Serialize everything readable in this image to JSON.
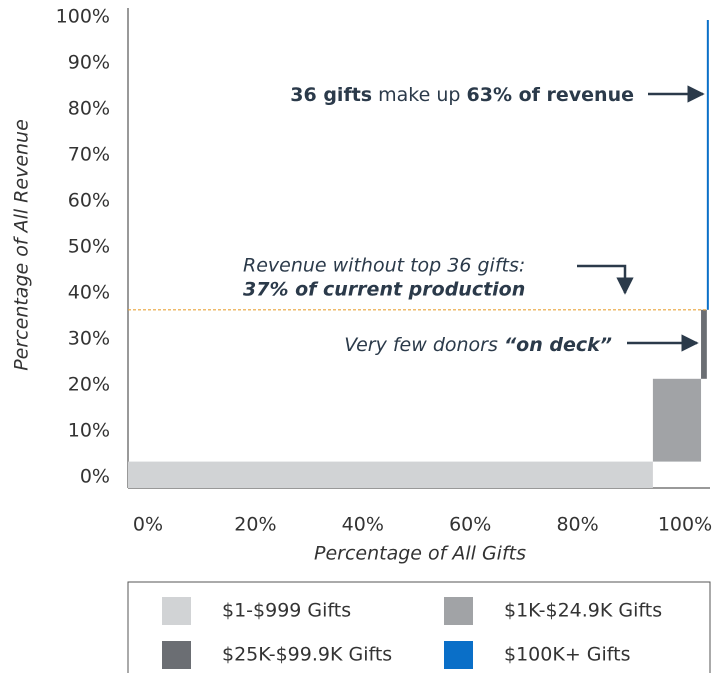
{
  "chart_data": {
    "type": "mekko-step",
    "xlabel": "Percentage of All Gifts",
    "ylabel": "Percentage of All Revenue",
    "xlim": [
      0,
      100
    ],
    "xticks": [
      {
        "value": 0,
        "label": "0%"
      },
      {
        "value": 20,
        "label": "20%"
      },
      {
        "value": 40,
        "label": "40%"
      },
      {
        "value": 60,
        "label": "60%"
      },
      {
        "value": 80,
        "label": "80%"
      },
      {
        "value": 100,
        "label": "100%"
      }
    ],
    "ylim": [
      0,
      100
    ],
    "yticks": [
      {
        "value": 0,
        "label": "0%"
      },
      {
        "value": 10,
        "label": "10%"
      },
      {
        "value": 20,
        "label": "20%"
      },
      {
        "value": 30,
        "label": "30%"
      },
      {
        "value": 40,
        "label": "40%"
      },
      {
        "value": 50,
        "label": "50%"
      },
      {
        "value": 60,
        "label": "60%"
      },
      {
        "value": 70,
        "label": "70%"
      },
      {
        "value": 80,
        "label": "80%"
      },
      {
        "value": 90,
        "label": "90%"
      },
      {
        "value": 100,
        "label": "100%"
      }
    ],
    "series": [
      {
        "name": "$1-$999 Gifts",
        "color": "#d1d3d5",
        "gifts": 90.5,
        "revenue": 4
      },
      {
        "name": "$1K-$24.9K Gifts",
        "color": "#a1a3a6",
        "gifts": 8.3,
        "revenue": 18
      },
      {
        "name": "$25K-$99.9K Gifts",
        "color": "#6b6e73",
        "gifts": 1,
        "revenue": 15
      },
      {
        "name": "$100K+ Gifts",
        "color": "#0a6fc8",
        "gifts": 0.2,
        "revenue": 63
      }
    ],
    "threshold": 37,
    "threshold_color": "#e8a33a",
    "annotations": [
      {
        "parts": [
          {
            "text": "36 gifts",
            "style": "bold"
          },
          {
            "text": " make up ",
            "style": "normal"
          },
          {
            "text": "63% of revenue",
            "style": "bold"
          }
        ]
      },
      {
        "parts": [
          {
            "text": "Revenue without top 36 gifts:",
            "style": "italic"
          },
          {
            "text": "37% of current production",
            "style": "bold-italic"
          }
        ]
      },
      {
        "parts": [
          {
            "text": "Very few donors ",
            "style": "italic"
          },
          {
            "text": "“on deck”",
            "style": "bold-italic"
          }
        ]
      }
    ]
  }
}
